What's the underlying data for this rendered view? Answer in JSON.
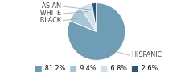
{
  "chart_data": {
    "type": "pie",
    "categories": [
      "HISPANIC",
      "BLACK",
      "WHITE",
      "ASIAN"
    ],
    "values": [
      81.2,
      9.4,
      6.8,
      2.6
    ],
    "value_labels": [
      "81.2%",
      "9.4%",
      "6.8%",
      "2.6%"
    ],
    "colors": [
      "#6e9db5",
      "#a8c5d5",
      "#cfe0ea",
      "#2b5570"
    ],
    "legend": "bottom"
  }
}
